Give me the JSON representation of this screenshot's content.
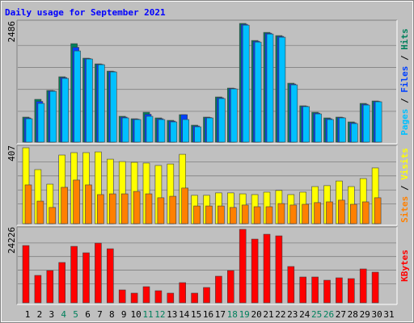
{
  "chart_data": [
    {
      "type": "bar",
      "title": "Daily usage for September 2021",
      "ylim": [
        0,
        2486
      ],
      "yticks": [
        2486
      ],
      "legend_separator": "/",
      "series": [
        {
          "name": "Hits",
          "color": "#00805c",
          "values": [
            524,
            896,
            1082,
            1369,
            2062,
            1758,
            1639,
            1487,
            541,
            490,
            625,
            507,
            456,
            575,
            355,
            524,
            946,
            1132,
            2486,
            2129,
            2298,
            2231,
            1234,
            761,
            625,
            507,
            524,
            423,
            811,
            862,
            null
          ]
        },
        {
          "name": "Files",
          "color": "#0040ff",
          "values": [
            507,
            853,
            1074,
            1352,
            1986,
            1750,
            1630,
            1478,
            524,
            482,
            583,
            490,
            440,
            575,
            338,
            515,
            930,
            1124,
            2468,
            2112,
            2281,
            2214,
            1217,
            752,
            608,
            490,
            515,
            406,
            794,
            853,
            null
          ]
        },
        {
          "name": "Pages",
          "color": "#00c0ff",
          "values": [
            490,
            811,
            1065,
            1335,
            1910,
            1741,
            1622,
            1470,
            507,
            473,
            541,
            473,
            423,
            473,
            321,
            507,
            913,
            1115,
            2450,
            2095,
            2264,
            2197,
            1200,
            744,
            591,
            473,
            507,
            389,
            777,
            845,
            null
          ]
        }
      ]
    },
    {
      "type": "bar",
      "ylim": [
        0,
        407
      ],
      "yticks": [
        407
      ],
      "legend_separator": "/",
      "series": [
        {
          "name": "Visits",
          "color": "#ffff00",
          "values": [
            407,
            290,
            212,
            368,
            381,
            381,
            385,
            346,
            333,
            329,
            325,
            312,
            320,
            372,
            152,
            152,
            165,
            165,
            160,
            156,
            169,
            178,
            156,
            169,
            199,
            204,
            229,
            199,
            242,
            299,
            null
          ]
        },
        {
          "name": "Sites",
          "color": "#ff8000",
          "values": [
            208,
            121,
            87,
            195,
            234,
            208,
            156,
            160,
            160,
            173,
            160,
            139,
            147,
            191,
            95,
            95,
            95,
            87,
            100,
            91,
            91,
            108,
            100,
            104,
            113,
            117,
            126,
            104,
            117,
            139,
            null
          ]
        }
      ]
    },
    {
      "type": "bar",
      "ylim": [
        0,
        24226
      ],
      "yticks": [
        24226
      ],
      "categories": [
        "1",
        "2",
        "3",
        "4",
        "5",
        "6",
        "7",
        "8",
        "9",
        "10",
        "11",
        "12",
        "13",
        "14",
        "15",
        "16",
        "17",
        "18",
        "19",
        "20",
        "21",
        "22",
        "23",
        "24",
        "25",
        "26",
        "27",
        "28",
        "29",
        "30",
        "31"
      ],
      "category_colors": [
        "#000",
        "#000",
        "#000",
        "#00805c",
        "#00805c",
        "#000",
        "#000",
        "#000",
        "#000",
        "#000",
        "#00805c",
        "#00805c",
        "#000",
        "#000",
        "#000",
        "#000",
        "#000",
        "#00805c",
        "#00805c",
        "#000",
        "#000",
        "#000",
        "#000",
        "#000",
        "#00805c",
        "#00805c",
        "#000",
        "#000",
        "#000",
        "#000",
        "#000"
      ],
      "series": [
        {
          "name": "KBytes",
          "color": "#ff0000",
          "values": [
            18886,
            9044,
            10640,
            13300,
            18620,
            16492,
            19684,
            17822,
            4256,
            3192,
            5320,
            3990,
            3192,
            6650,
            3192,
            5054,
            8778,
            10640,
            24226,
            21014,
            22610,
            22078,
            11970,
            8512,
            8512,
            7448,
            8246,
            7980,
            11172,
            10108,
            null
          ]
        }
      ]
    }
  ]
}
